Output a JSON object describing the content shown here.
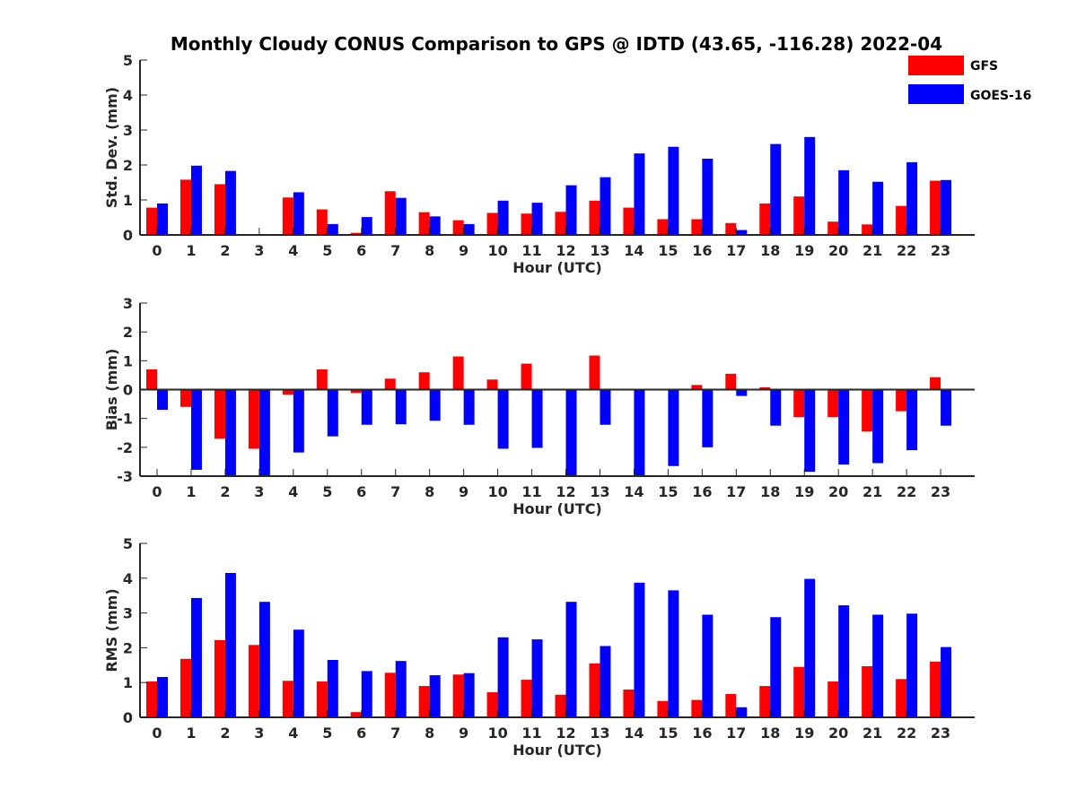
{
  "title": "Monthly Cloudy CONUS Comparison to GPS @ IDTD (43.65, -116.28) 2022-04",
  "legend": {
    "placement": "top-right",
    "items": [
      {
        "label": "GFS",
        "color": "#ff0000"
      },
      {
        "label": "GOES-16",
        "color": "#0000ff"
      }
    ]
  },
  "chart_data": [
    {
      "type": "bar",
      "xlabel": "Hour (UTC)",
      "ylabel": "Std. Dev. (mm)",
      "ylim": [
        0,
        5
      ],
      "yticks": [
        0,
        1,
        2,
        3,
        4,
        5
      ],
      "categories": [
        "0",
        "1",
        "2",
        "3",
        "4",
        "5",
        "6",
        "7",
        "8",
        "9",
        "10",
        "11",
        "12",
        "13",
        "14",
        "15",
        "16",
        "17",
        "18",
        "19",
        "20",
        "21",
        "22",
        "23"
      ],
      "series": [
        {
          "name": "GFS",
          "color": "#ff0000",
          "values": [
            0.78,
            1.58,
            1.45,
            null,
            1.07,
            0.73,
            0.06,
            1.25,
            0.65,
            0.42,
            0.63,
            0.61,
            0.66,
            0.98,
            0.78,
            0.45,
            0.45,
            0.34,
            0.9,
            1.1,
            0.38,
            0.3,
            0.83,
            1.55
          ]
        },
        {
          "name": "GOES-16",
          "color": "#0000ff",
          "values": [
            0.9,
            1.98,
            1.83,
            null,
            1.22,
            0.31,
            0.51,
            1.06,
            0.53,
            0.31,
            0.98,
            0.92,
            1.42,
            1.65,
            2.33,
            2.52,
            2.18,
            0.14,
            2.6,
            2.8,
            1.85,
            1.52,
            2.08,
            1.57
          ]
        }
      ]
    },
    {
      "type": "bar",
      "xlabel": "Hour (UTC)",
      "ylabel": "Bias (mm)",
      "ylim": [
        -3,
        3
      ],
      "yticks": [
        -3,
        -2,
        -1,
        0,
        1,
        2,
        3
      ],
      "categories": [
        "0",
        "1",
        "2",
        "3",
        "4",
        "5",
        "6",
        "7",
        "8",
        "9",
        "10",
        "11",
        "12",
        "13",
        "14",
        "15",
        "16",
        "17",
        "18",
        "19",
        "20",
        "21",
        "22",
        "23"
      ],
      "series": [
        {
          "name": "GFS",
          "color": "#ff0000",
          "values": [
            0.7,
            -0.6,
            -1.7,
            -2.05,
            -0.18,
            0.7,
            -0.12,
            0.38,
            0.6,
            1.15,
            0.35,
            0.9,
            0.0,
            1.18,
            -0.03,
            -0.03,
            0.16,
            0.55,
            0.08,
            -0.95,
            -0.95,
            -1.45,
            -0.75,
            0.43
          ]
        },
        {
          "name": "GOES-16",
          "color": "#0000ff",
          "values": [
            -0.7,
            -2.78,
            -3.0,
            -3.0,
            -2.18,
            -1.62,
            -1.22,
            -1.2,
            -1.08,
            -1.22,
            -2.05,
            -2.02,
            -3.0,
            -1.22,
            -3.0,
            -2.65,
            -2.0,
            -0.22,
            -1.25,
            -2.85,
            -2.6,
            -2.55,
            -2.1,
            -1.25
          ]
        }
      ]
    },
    {
      "type": "bar",
      "xlabel": "Hour (UTC)",
      "ylabel": "RMS (mm)",
      "ylim": [
        0,
        5
      ],
      "yticks": [
        0,
        1,
        2,
        3,
        4,
        5
      ],
      "categories": [
        "0",
        "1",
        "2",
        "3",
        "4",
        "5",
        "6",
        "7",
        "8",
        "9",
        "10",
        "11",
        "12",
        "13",
        "14",
        "15",
        "16",
        "17",
        "18",
        "19",
        "20",
        "21",
        "22",
        "23"
      ],
      "series": [
        {
          "name": "GFS",
          "color": "#ff0000",
          "values": [
            1.03,
            1.68,
            2.22,
            2.08,
            1.05,
            1.03,
            0.15,
            1.28,
            0.9,
            1.23,
            0.72,
            1.08,
            0.65,
            1.55,
            0.8,
            0.47,
            0.5,
            0.67,
            0.9,
            1.45,
            1.03,
            1.47,
            1.1,
            1.6
          ]
        },
        {
          "name": "GOES-16",
          "color": "#0000ff",
          "values": [
            1.16,
            3.43,
            4.15,
            3.32,
            2.52,
            1.65,
            1.33,
            1.62,
            1.21,
            1.27,
            2.3,
            2.24,
            3.32,
            2.05,
            3.87,
            3.65,
            2.95,
            0.29,
            2.88,
            3.98,
            3.22,
            2.95,
            2.98,
            2.02
          ]
        }
      ]
    }
  ]
}
